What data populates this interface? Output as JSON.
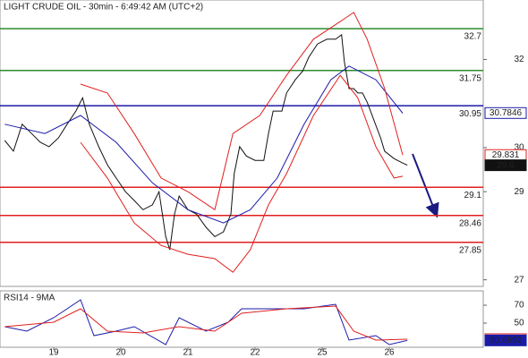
{
  "chart_data": [
    {
      "type": "line",
      "title": "LIGHT CRUDE OIL - 30min - 6:49:42 AM (UTC+2)",
      "xlim": [
        0.2,
        7.4
      ],
      "ylim": [
        26.85,
        33.35
      ],
      "yticks": [
        27,
        29,
        30,
        32
      ],
      "levels": [
        {
          "value": 32.7,
          "color": "#2e8b2e"
        },
        {
          "value": 31.75,
          "color": "#2e8b2e"
        },
        {
          "value": 30.95,
          "color": "#1a1aa8"
        },
        {
          "value": 29.1,
          "color": "#e02020"
        },
        {
          "value": 28.46,
          "color": "#e02020"
        },
        {
          "value": 27.85,
          "color": "#e02020"
        }
      ],
      "series": [
        {
          "color": "#111111",
          "x": [
            0.27,
            0.4,
            0.53,
            0.67,
            0.8,
            0.93,
            1.07,
            1.2,
            1.33,
            1.43,
            1.53,
            1.67,
            1.8,
            1.93,
            2.07,
            2.2,
            2.33,
            2.47,
            2.57,
            2.67,
            2.73,
            2.8,
            2.87,
            3.0,
            3.13,
            3.27,
            3.4,
            3.53,
            3.64,
            3.69,
            3.77,
            3.87,
            4.0,
            4.13,
            4.2,
            4.27,
            4.4,
            4.47,
            4.6,
            4.71,
            4.8,
            4.93,
            5.07,
            5.2,
            5.29,
            5.33,
            5.4,
            5.47,
            5.53,
            5.6,
            5.67,
            5.77,
            5.87,
            5.93,
            6.07,
            6.2,
            6.27
          ],
          "values": [
            30.16,
            29.92,
            30.53,
            30.32,
            30.12,
            30.02,
            30.22,
            30.53,
            30.83,
            31.13,
            30.53,
            30.02,
            29.61,
            29.31,
            29.0,
            28.8,
            28.59,
            28.7,
            29.0,
            27.98,
            27.68,
            28.49,
            28.9,
            28.59,
            28.49,
            28.19,
            27.98,
            28.09,
            28.49,
            29.41,
            30.02,
            29.81,
            29.71,
            29.71,
            30.32,
            30.83,
            30.83,
            31.24,
            31.54,
            31.74,
            32.05,
            32.35,
            32.46,
            32.46,
            32.56,
            31.95,
            31.34,
            31.34,
            31.24,
            31.24,
            31.03,
            30.63,
            30.22,
            29.92,
            29.75,
            29.65,
            29.6
          ]
        },
        {
          "color": "#1a1aa8",
          "x": [
            0.27,
            0.87,
            1.4,
            1.93,
            2.47,
            3.0,
            3.53,
            3.93,
            4.33,
            4.73,
            5.13,
            5.4,
            5.8,
            6.2
          ],
          "values": [
            30.53,
            30.32,
            30.73,
            30.12,
            29.2,
            28.59,
            28.29,
            28.59,
            29.31,
            30.53,
            31.54,
            31.85,
            31.54,
            30.78
          ]
        },
        {
          "color": "#e02020",
          "x": [
            1.4,
            1.8,
            2.2,
            2.6,
            3.0,
            3.4,
            3.67,
            4.07,
            4.47,
            4.87,
            5.27,
            5.47,
            5.67,
            5.93,
            6.2
          ],
          "values": [
            31.44,
            31.24,
            30.32,
            29.31,
            29.0,
            28.59,
            30.32,
            30.73,
            31.64,
            32.46,
            32.86,
            33.07,
            32.46,
            31.34,
            29.83
          ]
        },
        {
          "color": "#e02020",
          "x": [
            1.4,
            1.8,
            2.2,
            2.6,
            3.0,
            3.4,
            3.67,
            3.93,
            4.2,
            4.47,
            4.87,
            5.27,
            5.53,
            5.8,
            6.07,
            6.2
          ],
          "values": [
            30.12,
            29.31,
            28.29,
            27.78,
            27.58,
            27.48,
            27.17,
            27.68,
            28.7,
            29.41,
            30.73,
            31.64,
            31.13,
            30.02,
            29.31,
            29.35
          ]
        }
      ],
      "last_values": [
        {
          "value": 30.7846,
          "color": "#1a1aa8",
          "filled": false
        },
        {
          "value": 29.831,
          "color": "#e02020",
          "filled": false
        },
        {
          "value": 29.6,
          "color": "#111111",
          "filled": true
        }
      ]
    },
    {
      "type": "line",
      "title": "RSI14 - 9MA",
      "xlim": [
        0.2,
        7.4
      ],
      "ylim": [
        23,
        86
      ],
      "yticks": [
        50,
        70
      ],
      "xticks": [
        {
          "value": 1,
          "label": "19"
        },
        {
          "value": 2,
          "label": "20"
        },
        {
          "value": 3,
          "label": "21"
        },
        {
          "value": 4,
          "label": "22"
        },
        {
          "value": 5,
          "label": "25"
        },
        {
          "value": 6,
          "label": "26"
        }
      ],
      "series": [
        {
          "color": "#1a1aa8",
          "x": [
            0.27,
            0.6,
            1.0,
            1.4,
            1.6,
            1.93,
            2.2,
            2.67,
            2.87,
            3.27,
            3.6,
            3.8,
            4.2,
            4.73,
            5.2,
            5.4,
            5.8,
            6.0,
            6.27
          ],
          "values": [
            46,
            41,
            56,
            76,
            36,
            41,
            46,
            26,
            56,
            41,
            51,
            66,
            66,
            66,
            71,
            31,
            36,
            26,
            30.67
          ]
        },
        {
          "color": "#e02020",
          "x": [
            0.27,
            1.0,
            1.4,
            1.8,
            2.33,
            2.87,
            3.4,
            3.8,
            4.47,
            5.2,
            5.47,
            5.8,
            6.27
          ],
          "values": [
            46,
            51,
            66,
            41,
            39,
            46,
            41,
            61,
            66,
            69,
            41,
            31,
            32.02
          ]
        }
      ],
      "last_values": [
        {
          "value": 32.0247,
          "color": "#e02020",
          "filled": false
        },
        {
          "value": 30.6692,
          "color": "#1a1aa8",
          "filled": true
        }
      ]
    }
  ]
}
